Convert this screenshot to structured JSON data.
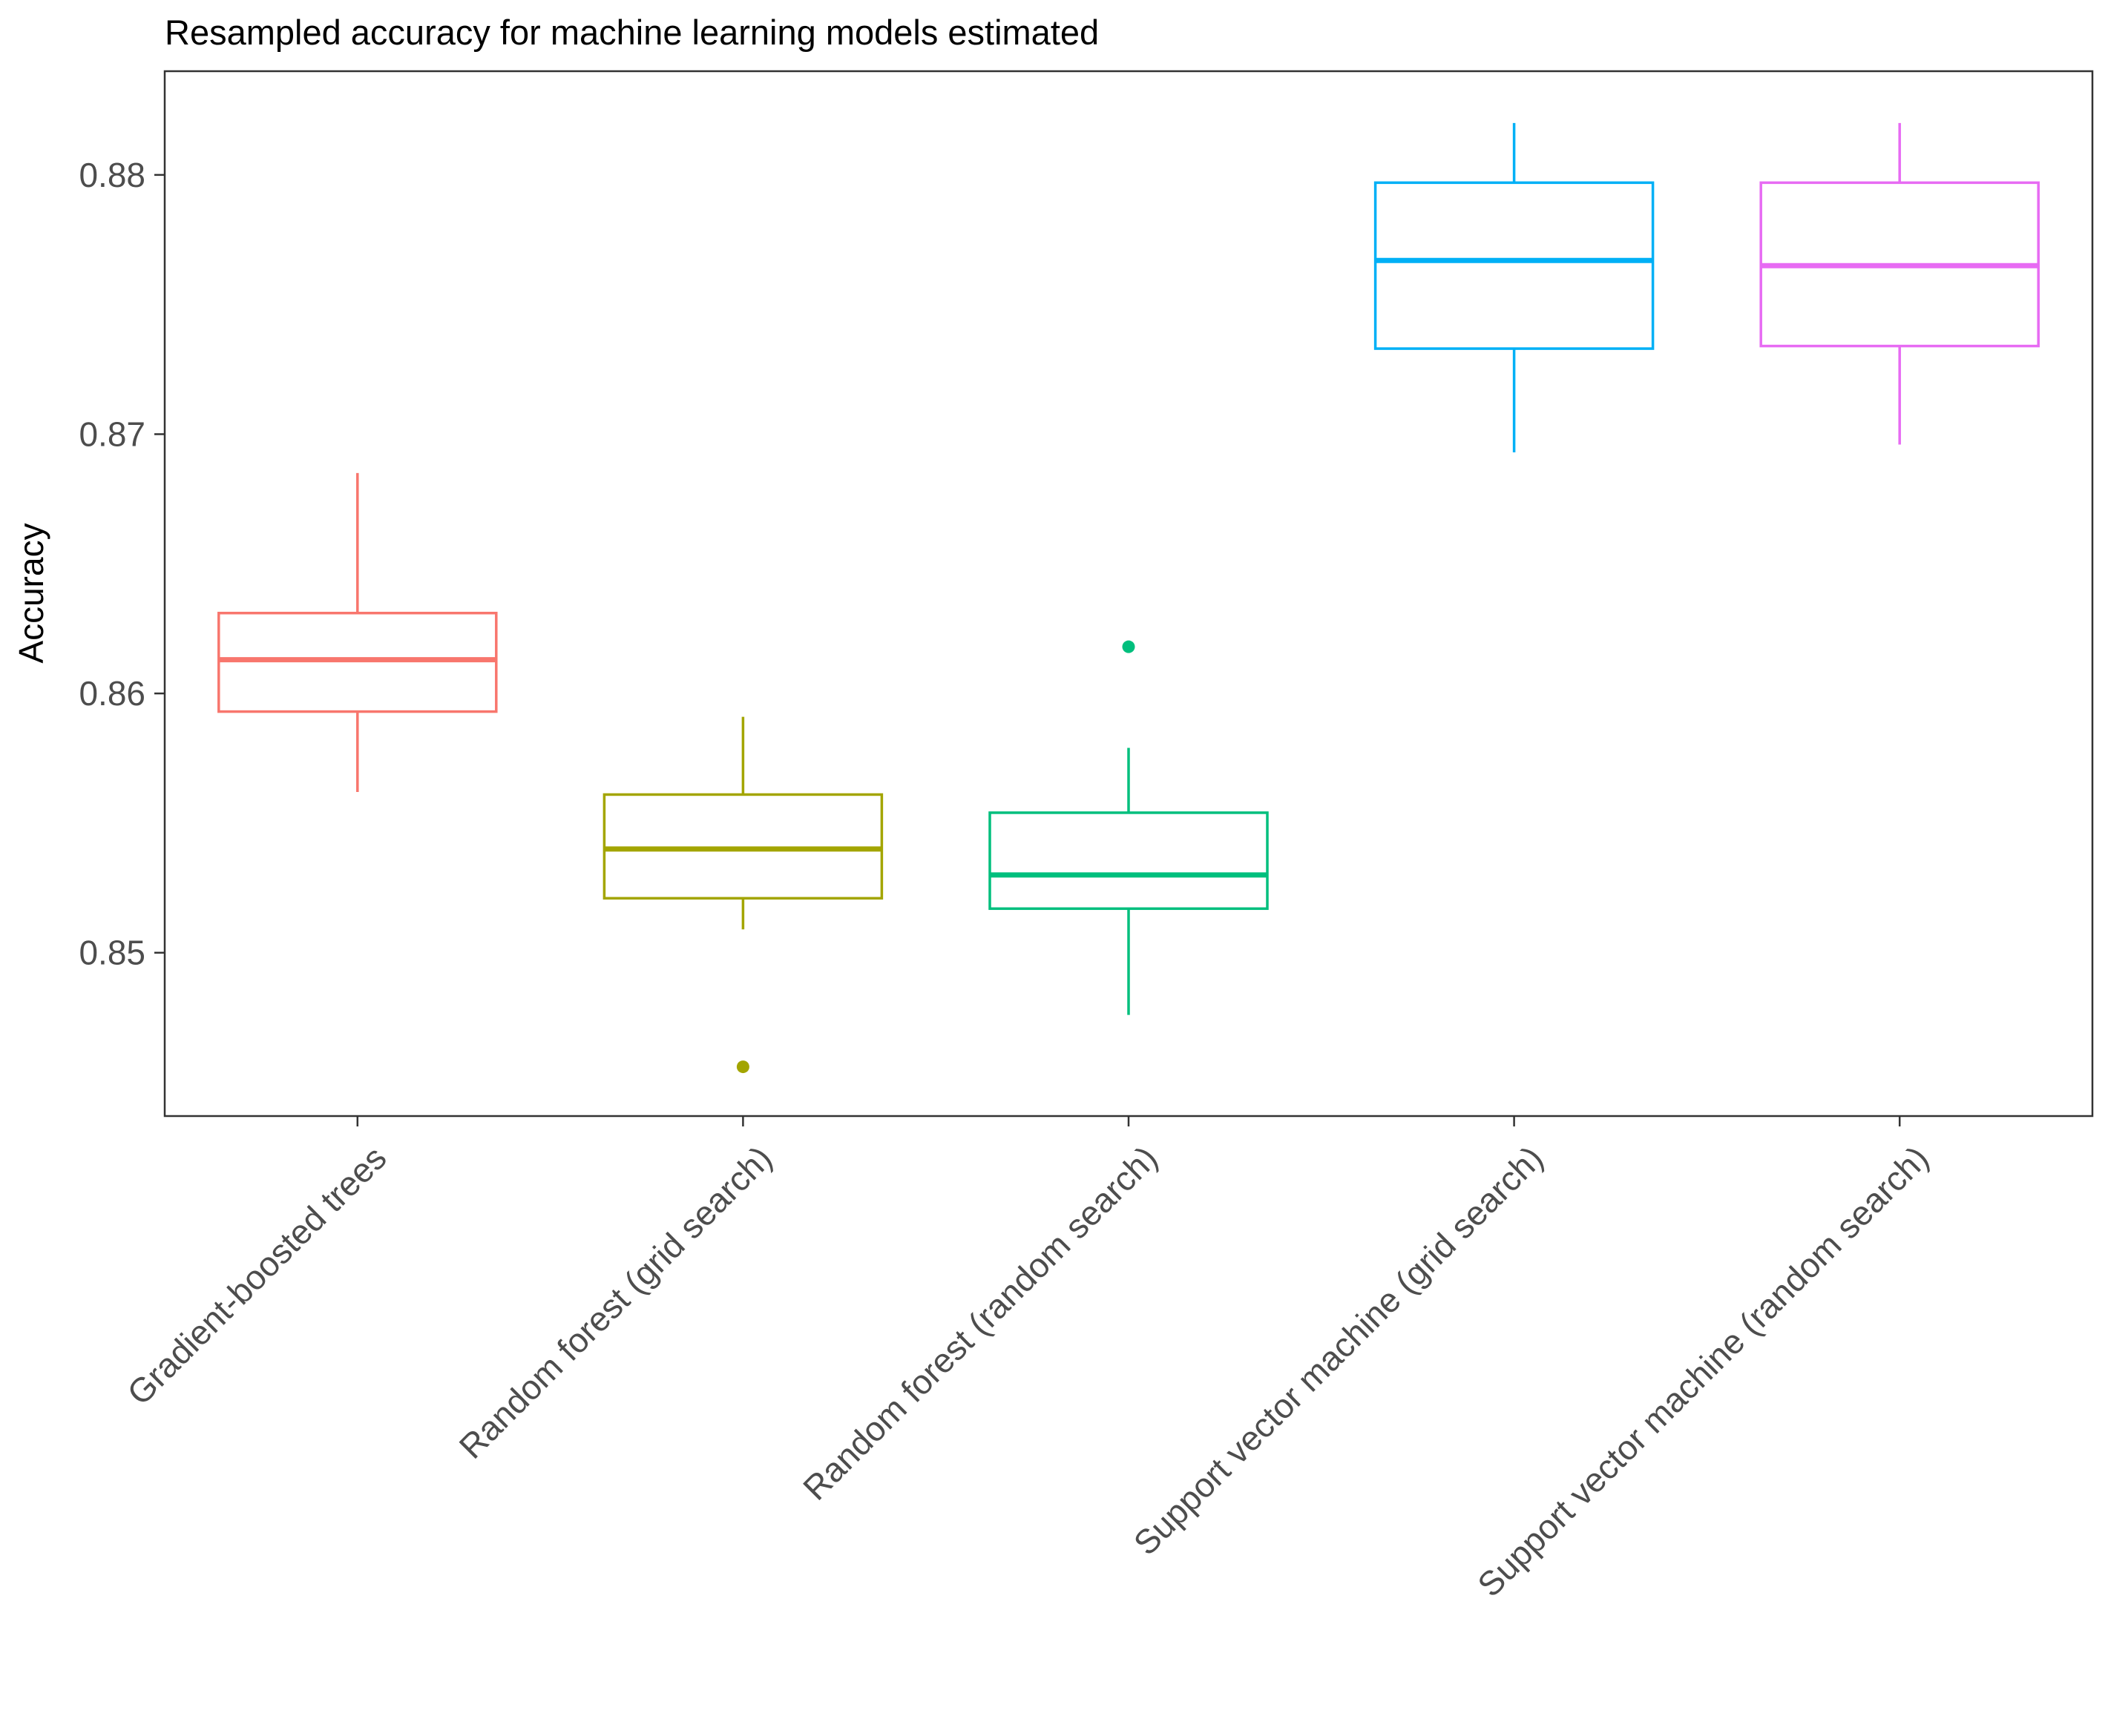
{
  "chart_data": {
    "type": "box",
    "title": "Resampled accuracy for machine learning models estimated",
    "xlabel": "",
    "ylabel": "Accuracy",
    "ylim": [
      0.8437,
      0.884
    ],
    "yticks": [
      0.85,
      0.86,
      0.87,
      0.88
    ],
    "ytick_labels": [
      "0.85",
      "0.86",
      "0.87",
      "0.88"
    ],
    "grid": false,
    "legend": "none",
    "categories": [
      "Gradient-boosted trees",
      "Random forest (grid search)",
      "Random forest (random search)",
      "Support vector machine (grid search)",
      "Support vector machine (random search)"
    ],
    "colors": [
      "#F8766D",
      "#A3A500",
      "#00BF7D",
      "#00B0F6",
      "#E76BF3"
    ],
    "boxes": [
      {
        "whisker_low": 0.8562,
        "q1": 0.8593,
        "median": 0.8613,
        "q3": 0.8631,
        "whisker_high": 0.8685,
        "outliers": []
      },
      {
        "whisker_low": 0.8509,
        "q1": 0.8521,
        "median": 0.854,
        "q3": 0.8561,
        "whisker_high": 0.8591,
        "outliers": [
          0.8456
        ]
      },
      {
        "whisker_low": 0.8476,
        "q1": 0.8517,
        "median": 0.853,
        "q3": 0.8554,
        "whisker_high": 0.8579,
        "outliers": [
          0.8618
        ]
      },
      {
        "whisker_low": 0.8693,
        "q1": 0.8733,
        "median": 0.8767,
        "q3": 0.8797,
        "whisker_high": 0.882,
        "outliers": []
      },
      {
        "whisker_low": 0.8696,
        "q1": 0.8734,
        "median": 0.8765,
        "q3": 0.8797,
        "whisker_high": 0.882,
        "outliers": []
      }
    ]
  }
}
